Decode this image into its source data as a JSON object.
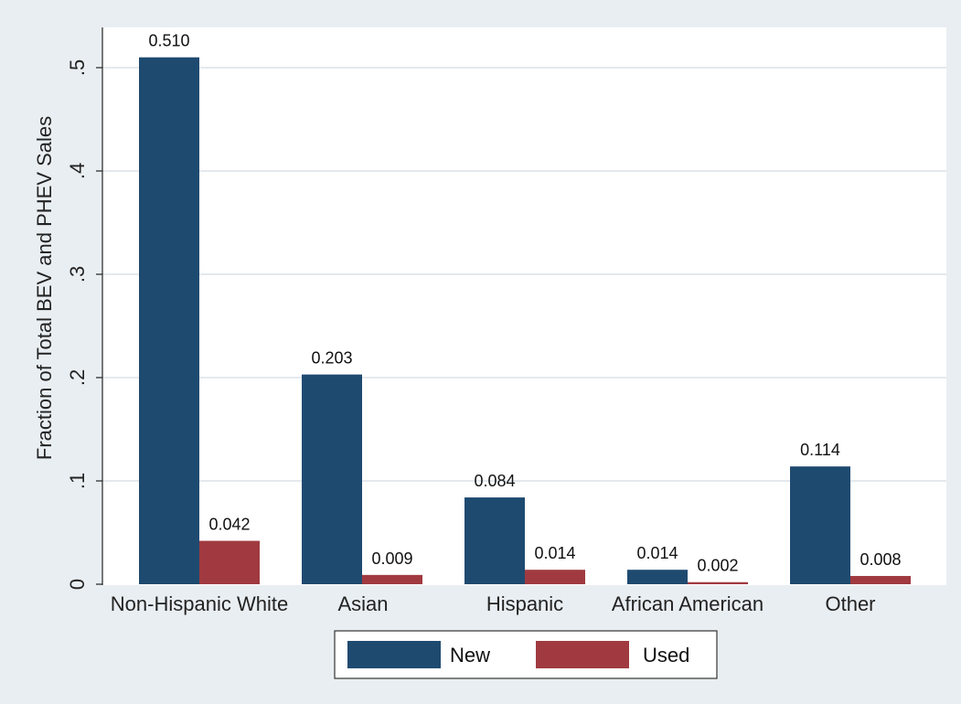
{
  "chart_data": {
    "type": "bar",
    "ylabel": "Fraction of Total BEV and PHEV Sales",
    "xlabel": "",
    "title": "",
    "ylim": [
      0,
      0.55
    ],
    "yticks": [
      0,
      0.1,
      0.2,
      0.3,
      0.4,
      0.5
    ],
    "ytick_labels": [
      "0",
      ".1",
      ".2",
      ".3",
      ".4",
      ".5"
    ],
    "grid": true,
    "legend_position": "bottom",
    "categories": [
      "Non-Hispanic White",
      "Asian",
      "Hispanic",
      "African American",
      "Other"
    ],
    "series": [
      {
        "name": "New",
        "color": "#1f4a70",
        "values": [
          0.51,
          0.203,
          0.084,
          0.014,
          0.114
        ],
        "labels": [
          "0.510",
          "0.203",
          "0.084",
          "0.014",
          "0.114"
        ]
      },
      {
        "name": "Used",
        "color": "#a03a40",
        "values": [
          0.042,
          0.009,
          0.014,
          0.002,
          0.008
        ],
        "labels": [
          "0.042",
          "0.009",
          "0.014",
          "0.002",
          "0.008"
        ]
      }
    ],
    "colors": {
      "outer_background": "#e9eef2",
      "plot_background": "#ffffff",
      "grid": "#e4e9ee"
    }
  }
}
